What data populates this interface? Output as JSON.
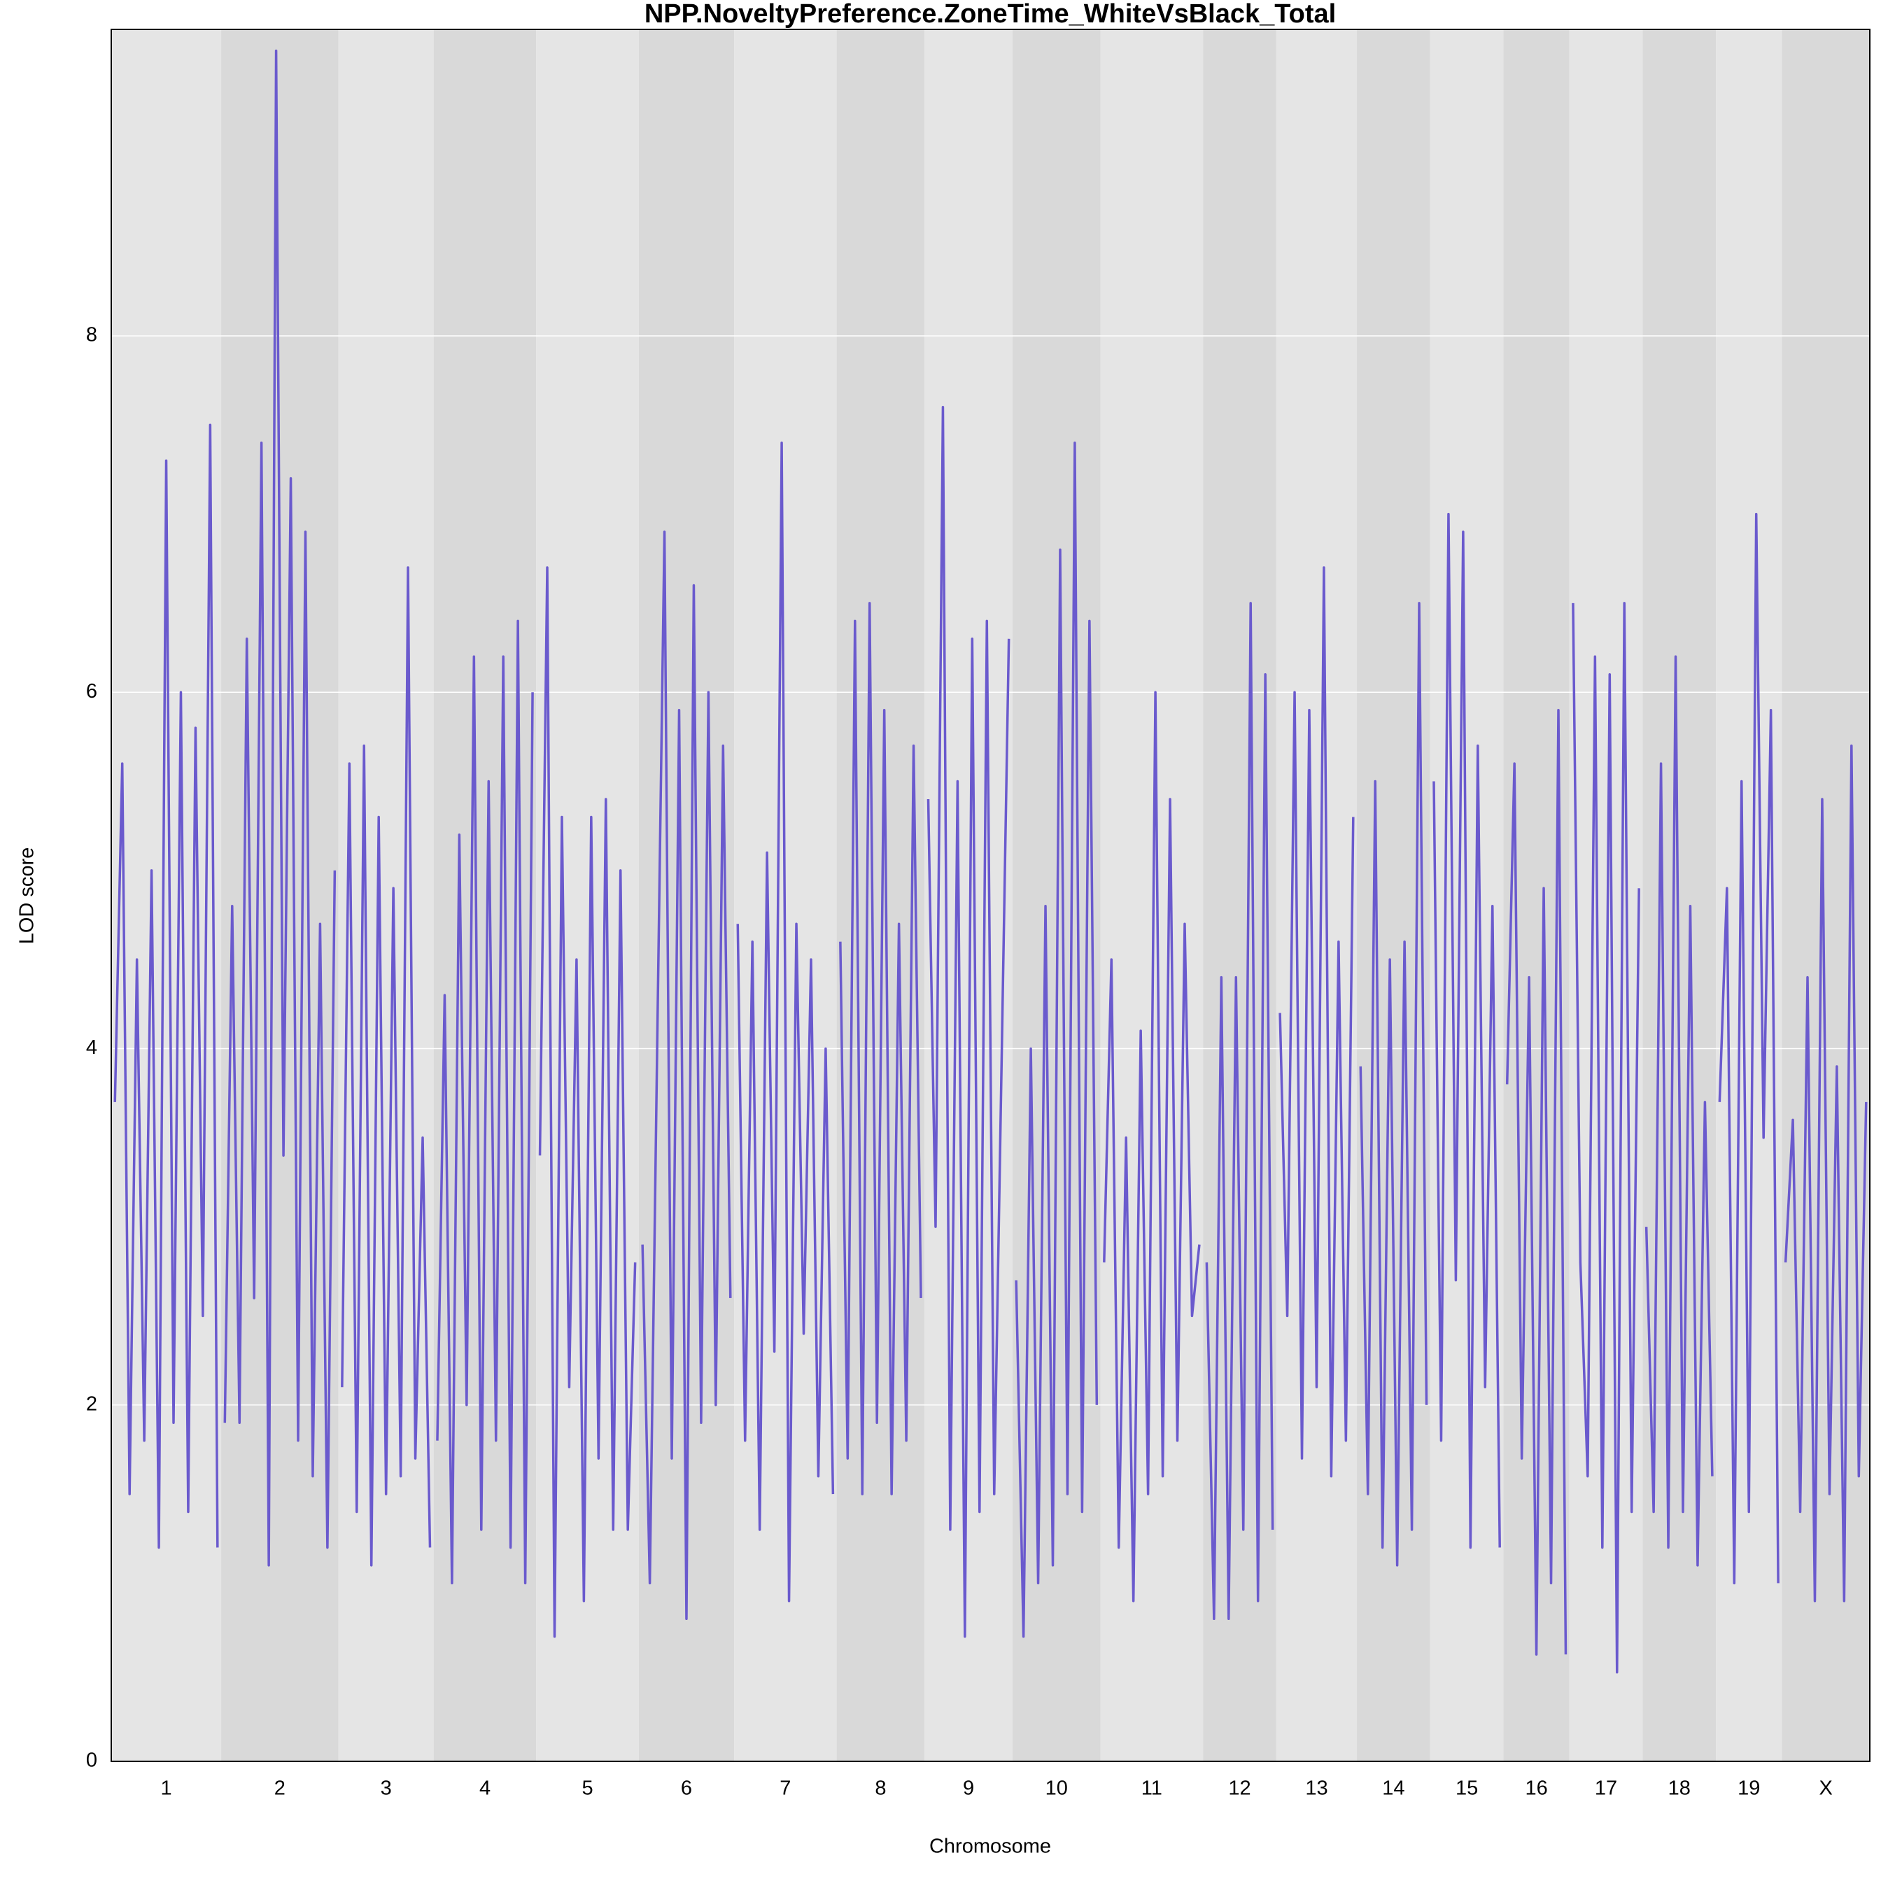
{
  "chart_data": {
    "type": "line",
    "title": "NPP.NoveltyPreference.ZoneTime_WhiteVsBlack_Total",
    "x_label": "Chromosome",
    "y_label": "LOD score",
    "color": "#6a5acd",
    "band_colors": [
      "#e5e5e5",
      "#d9d9d9"
    ],
    "grid": true,
    "ylim": [
      0,
      9.72
    ],
    "yticks": [
      0,
      2,
      4,
      6,
      8
    ],
    "chromosomes": [
      {
        "name": "1",
        "values": [
          3.7,
          5.6,
          1.5,
          4.5,
          1.8,
          5.0,
          1.2,
          7.3,
          1.9,
          6.0,
          1.4,
          5.8,
          2.5,
          7.5,
          1.2
        ]
      },
      {
        "name": "2",
        "values": [
          1.9,
          4.8,
          1.9,
          6.3,
          2.6,
          7.4,
          1.1,
          9.6,
          3.4,
          7.2,
          1.8,
          6.9,
          1.6,
          4.7,
          1.2,
          5.0
        ]
      },
      {
        "name": "3",
        "values": [
          2.1,
          5.6,
          1.4,
          5.7,
          1.1,
          5.3,
          1.5,
          4.9,
          1.6,
          6.7,
          1.7,
          3.5,
          1.2
        ]
      },
      {
        "name": "4",
        "values": [
          1.8,
          4.3,
          1.0,
          5.2,
          2.0,
          6.2,
          1.3,
          5.5,
          1.8,
          6.2,
          1.2,
          6.4,
          1.0,
          6.0
        ]
      },
      {
        "name": "5",
        "values": [
          3.4,
          6.7,
          0.7,
          5.3,
          2.1,
          4.5,
          0.9,
          5.3,
          1.7,
          5.4,
          1.3,
          5.0,
          1.3,
          2.8
        ]
      },
      {
        "name": "6",
        "values": [
          2.9,
          1.0,
          4.0,
          6.9,
          1.7,
          5.9,
          0.8,
          6.6,
          1.9,
          6.0,
          2.0,
          5.7,
          2.6
        ]
      },
      {
        "name": "7",
        "values": [
          4.7,
          1.8,
          4.6,
          1.3,
          5.1,
          2.3,
          7.4,
          0.9,
          4.7,
          2.4,
          4.5,
          1.6,
          4.0,
          1.5
        ]
      },
      {
        "name": "8",
        "values": [
          4.6,
          1.7,
          6.4,
          1.5,
          6.5,
          1.9,
          5.9,
          1.5,
          4.7,
          1.8,
          5.7,
          2.6
        ]
      },
      {
        "name": "9",
        "values": [
          5.4,
          3.0,
          7.6,
          1.3,
          5.5,
          0.7,
          6.3,
          1.4,
          6.4,
          1.5,
          3.9,
          6.3
        ]
      },
      {
        "name": "10",
        "values": [
          2.7,
          0.7,
          4.0,
          1.0,
          4.8,
          1.1,
          6.8,
          1.5,
          7.4,
          1.4,
          6.4,
          2.0
        ]
      },
      {
        "name": "11",
        "values": [
          2.8,
          4.5,
          1.2,
          3.5,
          0.9,
          4.1,
          1.5,
          6.0,
          1.6,
          5.4,
          1.8,
          4.7,
          2.5,
          2.9
        ]
      },
      {
        "name": "12",
        "values": [
          2.8,
          0.8,
          4.4,
          0.8,
          4.4,
          1.3,
          6.5,
          0.9,
          6.1,
          1.3
        ]
      },
      {
        "name": "13",
        "values": [
          4.2,
          2.5,
          6.0,
          1.7,
          5.9,
          2.1,
          6.7,
          1.6,
          4.6,
          1.8,
          5.3
        ]
      },
      {
        "name": "14",
        "values": [
          3.9,
          1.5,
          5.5,
          1.2,
          4.5,
          1.1,
          4.6,
          1.3,
          6.5,
          2.0
        ]
      },
      {
        "name": "15",
        "values": [
          5.5,
          1.8,
          7.0,
          2.7,
          6.9,
          1.2,
          5.7,
          2.1,
          4.8,
          1.2
        ]
      },
      {
        "name": "16",
        "values": [
          3.8,
          5.6,
          1.7,
          4.4,
          0.6,
          4.9,
          1.0,
          5.9,
          0.6
        ]
      },
      {
        "name": "17",
        "values": [
          6.5,
          2.8,
          1.6,
          6.2,
          1.2,
          6.1,
          0.5,
          6.5,
          1.4,
          4.9
        ]
      },
      {
        "name": "18",
        "values": [
          3.0,
          1.4,
          5.6,
          1.2,
          6.2,
          1.4,
          4.8,
          1.1,
          3.7,
          1.6
        ]
      },
      {
        "name": "19",
        "values": [
          3.7,
          4.9,
          1.0,
          5.5,
          1.4,
          7.0,
          3.5,
          5.9,
          1.0
        ]
      },
      {
        "name": "X",
        "values": [
          2.8,
          3.6,
          1.4,
          4.4,
          0.9,
          5.4,
          1.5,
          3.9,
          0.9,
          5.7,
          1.6,
          3.7
        ]
      }
    ]
  }
}
